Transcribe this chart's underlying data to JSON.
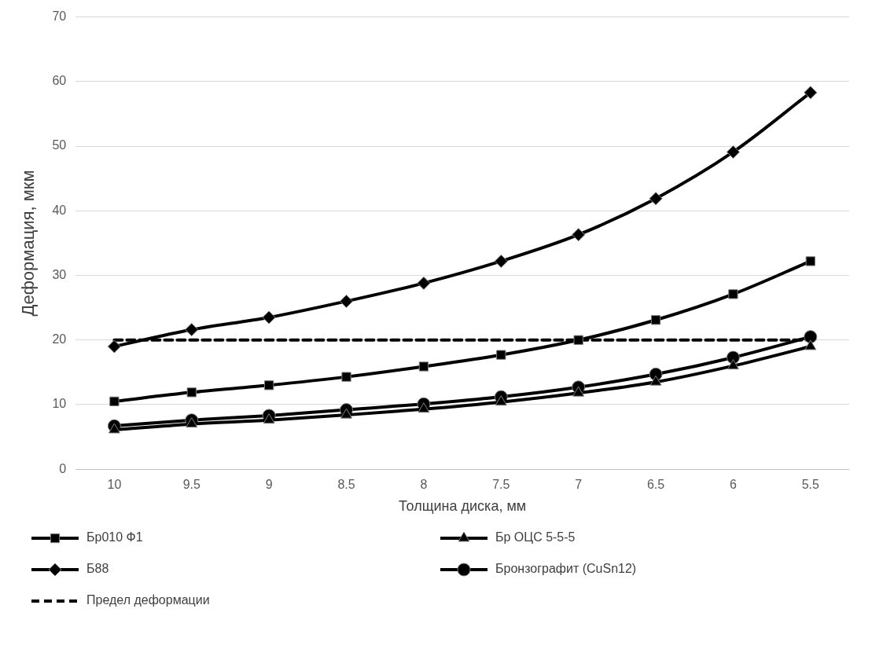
{
  "chart_data": {
    "type": "line",
    "xlabel": "Толщина диска, мм",
    "ylabel": "Деформация, мкм",
    "categories": [
      "10",
      "9.5",
      "9",
      "8.5",
      "8",
      "7.5",
      "7",
      "6.5",
      "6",
      "5.5"
    ],
    "series": [
      {
        "name": "Бр010 Ф1",
        "color": "#000000",
        "marker": "square",
        "line_style": "solid",
        "values": [
          10.5,
          11.9,
          13,
          14.3,
          15.9,
          17.7,
          20,
          23.1,
          27.1,
          32.2
        ]
      },
      {
        "name": "Бр ОЦС 5-5-5",
        "color": "#000000",
        "marker": "triangle",
        "line_style": "solid",
        "values": [
          6.1,
          7,
          7.6,
          8.4,
          9.3,
          10.4,
          11.8,
          13.5,
          16,
          19
        ]
      },
      {
        "name": "Б88",
        "color": "#000000",
        "marker": "diamond",
        "line_style": "solid",
        "values": [
          19,
          21.6,
          23.5,
          26,
          28.8,
          32.2,
          36.3,
          41.9,
          49.1,
          58.3
        ]
      },
      {
        "name": "Бронзографит (CuSn12)",
        "color": "#000000",
        "marker": "circle",
        "line_style": "solid",
        "values": [
          6.7,
          7.6,
          8.3,
          9.2,
          10.1,
          11.2,
          12.7,
          14.7,
          17.3,
          20.5
        ]
      },
      {
        "name": "Предел деформации",
        "color": "#000000",
        "marker": "none",
        "line_style": "dashed",
        "values": [
          20,
          20,
          20,
          20,
          20,
          20,
          20,
          20,
          20,
          20
        ]
      }
    ],
    "ylim": [
      0,
      70
    ],
    "yticks": [
      0,
      10,
      20,
      30,
      40,
      50,
      60,
      70
    ],
    "grid": "y",
    "legend": "bottom"
  }
}
